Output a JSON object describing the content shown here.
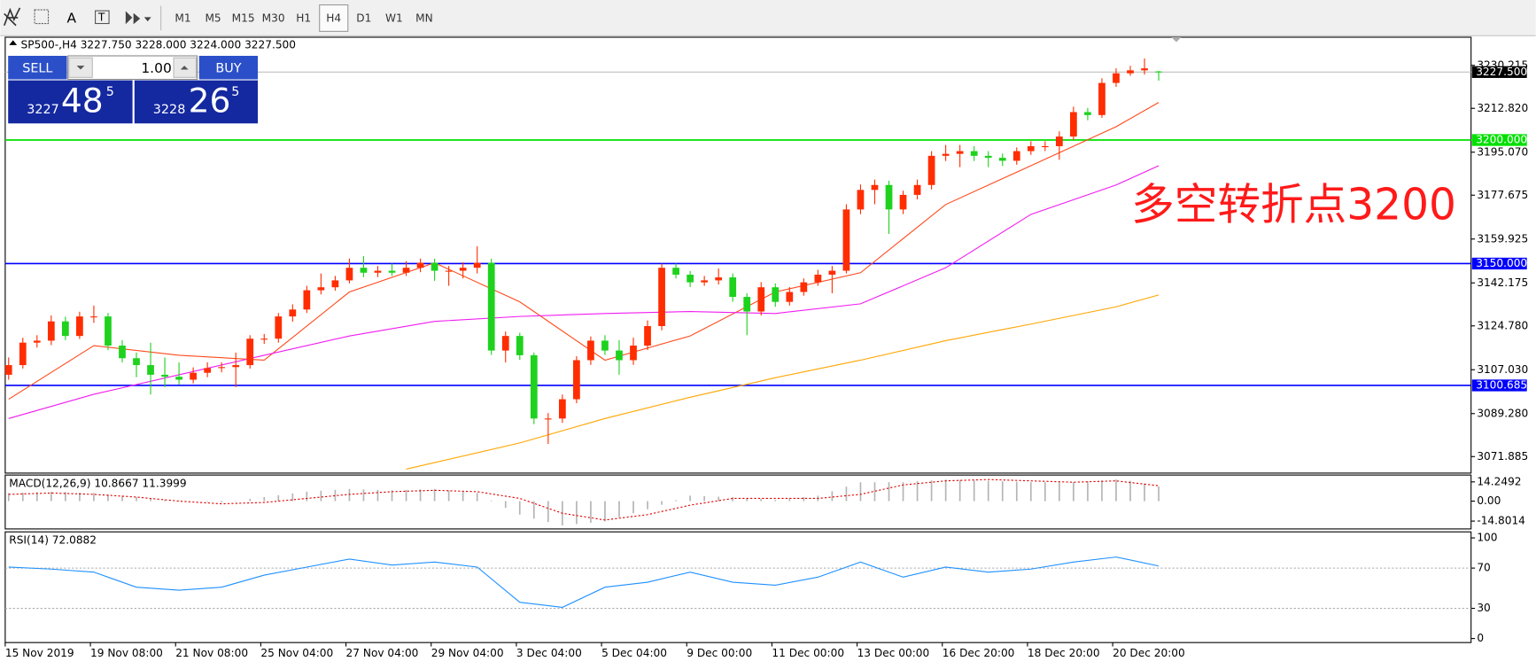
{
  "toolbar": {
    "timeframes": [
      "M1",
      "M5",
      "M15",
      "M30",
      "H1",
      "H4",
      "D1",
      "W1",
      "MN"
    ],
    "active": 5
  },
  "trade_panel": {
    "sell": "SELL",
    "buy": "BUY",
    "lot": "1.00",
    "bid": {
      "head": "3227",
      "main": "48",
      "tail": "5"
    },
    "ask": {
      "head": "3228",
      "main": "26",
      "tail": "5"
    }
  },
  "chart_data": {
    "type": "candlestick",
    "header": "SP500-,H4  3227.750 3228.000 3224.000 3227.500",
    "categories": [
      "15 Nov 2019",
      null,
      null,
      null,
      null,
      null,
      "19 Nov 08:00",
      null,
      null,
      null,
      null,
      null,
      "21 Nov 08:00",
      null,
      null,
      null,
      null,
      null,
      "25 Nov 04:00",
      null,
      null,
      null,
      null,
      null,
      "27 Nov 04:00",
      null,
      null,
      null,
      null,
      null,
      "29 Nov 04:00",
      null,
      null,
      null,
      null,
      null,
      "3 Dec 04:00",
      null,
      null,
      null,
      null,
      null,
      "5 Dec 04:00",
      null,
      null,
      null,
      null,
      null,
      "9 Dec 00:00",
      null,
      null,
      null,
      null,
      null,
      "11 Dec 00:00",
      null,
      null,
      null,
      null,
      null,
      "13 Dec 00:00",
      null,
      null,
      null,
      null,
      null,
      "16 Dec 20:00",
      null,
      null,
      null,
      null,
      null,
      "18 Dec 20:00",
      null,
      null,
      null,
      null,
      null,
      "20 Dec 20:00",
      null,
      null,
      null
    ],
    "open": [
      3105.0,
      3108.9,
      3118.0,
      3118.8,
      3126.6,
      3120.7,
      3128.6,
      3128.6,
      3116.8,
      3111.7,
      3108.9,
      3105.0,
      3104.2,
      3103.0,
      3105.8,
      3107.7,
      3108.1,
      3108.9,
      3119.6,
      3119.6,
      3128.6,
      3131.4,
      3139.2,
      3140.4,
      3143.2,
      3148.3,
      3146.3,
      3147.1,
      3146.3,
      3148.3,
      3150.3,
      3147.1,
      3147.1,
      3148.3,
      3150.3,
      3114.8,
      3120.7,
      3112.9,
      3087.3,
      3087.3,
      3095.1,
      3110.9,
      3118.8,
      3114.8,
      3110.9,
      3116.8,
      3124.7,
      3148.3,
      3145.5,
      3142.4,
      3143.2,
      3144.4,
      3136.5,
      3130.6,
      3140.4,
      3134.5,
      3138.5,
      3142.4,
      3145.5,
      3147.1,
      3171.9,
      3179.8,
      3181.8,
      3171.9,
      3177.8,
      3181.8,
      3193.6,
      3194.4,
      3195.5,
      3193.6,
      3192.8,
      3191.6,
      3195.5,
      3197.5,
      3197.5,
      3201.4,
      3211.3,
      3210.1,
      3223.1,
      3227.0,
      3228.2,
      3227.75
    ],
    "high": [
      3112.0,
      3120.0,
      3121.0,
      3129.0,
      3128.5,
      3130.5,
      3133.0,
      3130.0,
      3119.0,
      3114.0,
      3118.0,
      3112.0,
      3110.0,
      3108.0,
      3110.0,
      3110.0,
      3114.0,
      3121.0,
      3121.5,
      3130.0,
      3133.5,
      3141.0,
      3146.0,
      3145.0,
      3152.0,
      3153.0,
      3149.0,
      3150.0,
      3151.0,
      3152.0,
      3152.0,
      3149.0,
      3150.5,
      3157.0,
      3152.0,
      3122.5,
      3122.0,
      3114.0,
      3089.5,
      3097.0,
      3112.5,
      3120.5,
      3121.0,
      3119.0,
      3120.0,
      3127.0,
      3150.0,
      3150.0,
      3147.0,
      3145.0,
      3148.0,
      3146.0,
      3138.0,
      3142.5,
      3142.0,
      3140.5,
      3144.0,
      3147.5,
      3149.0,
      3174.0,
      3182.0,
      3184.0,
      3183.5,
      3179.5,
      3184.0,
      3195.5,
      3198.0,
      3198.0,
      3197.5,
      3195.5,
      3194.5,
      3197.0,
      3199.5,
      3199.5,
      3203.5,
      3213.5,
      3213.0,
      3225.0,
      3229.0,
      3230.0,
      3233.0,
      3228.0
    ],
    "low": [
      3103.0,
      3107.5,
      3116.0,
      3117.0,
      3119.0,
      3119.5,
      3126.0,
      3115.0,
      3110.0,
      3104.0,
      3097.0,
      3100.0,
      3101.0,
      3101.5,
      3104.0,
      3106.0,
      3100.0,
      3107.5,
      3117.5,
      3118.0,
      3126.5,
      3130.0,
      3137.5,
      3139.0,
      3142.0,
      3144.5,
      3144.5,
      3145.0,
      3145.0,
      3146.5,
      3143.0,
      3141.0,
      3144.0,
      3146.0,
      3113.0,
      3110.0,
      3111.0,
      3085.0,
      3077.0,
      3085.5,
      3093.5,
      3109.0,
      3113.0,
      3105.0,
      3109.0,
      3115.0,
      3123.0,
      3144.0,
      3140.5,
      3141.0,
      3141.5,
      3134.5,
      3121.0,
      3129.0,
      3132.5,
      3133.0,
      3137.0,
      3141.0,
      3138.0,
      3146.0,
      3170.0,
      3174.0,
      3162.0,
      3170.0,
      3176.0,
      3180.0,
      3191.5,
      3189.0,
      3191.5,
      3189.0,
      3189.5,
      3190.0,
      3194.0,
      3195.5,
      3192.0,
      3200.0,
      3208.0,
      3209.0,
      3221.5,
      3226.0,
      3226.5,
      3224.0
    ],
    "close": [
      3108.9,
      3118.0,
      3118.8,
      3126.6,
      3120.7,
      3128.6,
      3128.6,
      3116.8,
      3111.7,
      3108.9,
      3105.0,
      3104.2,
      3103.0,
      3105.8,
      3107.7,
      3108.1,
      3108.9,
      3119.6,
      3119.6,
      3128.6,
      3131.4,
      3139.2,
      3140.4,
      3143.2,
      3148.3,
      3146.3,
      3147.1,
      3146.3,
      3148.3,
      3150.3,
      3147.1,
      3147.1,
      3148.3,
      3150.3,
      3114.8,
      3120.7,
      3112.9,
      3087.3,
      3087.3,
      3095.1,
      3110.9,
      3118.8,
      3114.8,
      3110.9,
      3116.8,
      3124.7,
      3148.3,
      3145.5,
      3142.4,
      3143.2,
      3144.4,
      3136.5,
      3130.6,
      3140.4,
      3134.5,
      3138.5,
      3142.4,
      3145.5,
      3147.1,
      3171.9,
      3179.8,
      3181.8,
      3171.9,
      3177.8,
      3181.8,
      3193.6,
      3194.4,
      3195.5,
      3193.6,
      3192.8,
      3191.6,
      3195.5,
      3197.5,
      3197.5,
      3201.4,
      3211.3,
      3210.1,
      3223.1,
      3227.0,
      3228.2,
      3229.0,
      3227.5
    ],
    "up_color": "#ff2d00",
    "down_color": "#1ed21e",
    "ylim": [
      3065.2,
      3241.6
    ],
    "yticks": [
      3230.215,
      {
        "value": 3212.82,
        "label": "3212.820"
      },
      {
        "value": 3195.07,
        "label": "3195.070"
      },
      3177.675,
      3159.925,
      3142.175,
      {
        "value": 3124.78,
        "label": "3124.780"
      },
      {
        "value": 3107.03,
        "label": "3107.030"
      },
      {
        "value": 3089.28,
        "label": "3089.280"
      },
      3071.885
    ],
    "moving_averages": [
      {
        "color": "#ff4a1c",
        "x": [
          0,
          6,
          12,
          18,
          24,
          30,
          36,
          42,
          48,
          54,
          60,
          66,
          72,
          78,
          81
        ],
        "values": [
          3095.1,
          3116.8,
          3112.9,
          3110.9,
          3138.5,
          3150.3,
          3134.5,
          3110.9,
          3120.7,
          3138.5,
          3146.3,
          3173.9,
          3189.6,
          3205.4,
          3215.2
        ]
      },
      {
        "color": "#f01cf0",
        "x": [
          0,
          6,
          12,
          18,
          24,
          30,
          36,
          42,
          48,
          54,
          60,
          66,
          72,
          78,
          81
        ],
        "values": [
          3087.3,
          3097.1,
          3105.0,
          3112.9,
          3120.7,
          3126.6,
          3128.6,
          3129.8,
          3130.6,
          3129.8,
          3133.7,
          3148.3,
          3169.9,
          3181.8,
          3189.6
        ]
      },
      {
        "color": "#ffa500",
        "x": [
          28,
          36,
          42,
          48,
          54,
          60,
          66,
          72,
          78,
          81
        ],
        "values": [
          3066.8,
          3077.4,
          3087.3,
          3095.9,
          3103.8,
          3110.9,
          3118.8,
          3125.5,
          3132.5,
          3137.3
        ]
      }
    ],
    "levels": [
      {
        "value": 3200,
        "label": "3200.000",
        "color": "#00e000"
      },
      {
        "value": 3150,
        "label": "3150.000",
        "color": "#0000ff"
      },
      {
        "value": 3100.685,
        "label": "3100.685",
        "color": "#0000ff"
      }
    ],
    "last_price": {
      "value": 3227.5,
      "label": "3227.500"
    },
    "annotation": "多空转折点3200",
    "annotation_color": "#ff1a1a",
    "macd": {
      "label": "MACD(12,26,9) 10.8667 11.3999",
      "ylim": [
        -20.6,
        19.3
      ],
      "yticks": [
        14.2492,
        {
          "value": 0,
          "label": "0.00"
        },
        -14.8014
      ],
      "histogram_color": "#b4b4b4",
      "histogram": [
        6,
        6.3,
        6.7,
        7,
        6.7,
        6.3,
        6,
        5,
        4,
        3,
        2,
        1,
        0.5,
        0,
        -0.5,
        -1,
        0.3,
        1.7,
        3,
        4.3,
        5.7,
        7,
        7.7,
        8.3,
        9,
        8.7,
        8.3,
        8,
        8.3,
        8.7,
        9,
        8,
        7,
        6,
        0.5,
        -5,
        -10,
        -13,
        -15.5,
        -18,
        -17,
        -16,
        -15,
        -12,
        -9,
        -6,
        -2.7,
        0.7,
        4,
        3.7,
        3.3,
        3,
        2.3,
        1.7,
        1,
        2,
        3,
        4,
        7.3,
        10.7,
        14,
        14,
        14,
        14,
        14.7,
        15.3,
        16,
        15.7,
        15.3,
        15,
        14.7,
        14.3,
        14,
        14,
        14,
        14,
        14.7,
        15.3,
        16,
        15,
        13,
        10.9
      ],
      "signal_color": "#e00000",
      "signal": {
        "x": [
          0,
          3,
          6,
          9,
          12,
          15,
          18,
          21,
          24,
          27,
          30,
          33,
          36,
          39,
          42,
          45,
          48,
          51,
          54,
          57,
          60,
          63,
          66,
          69,
          72,
          75,
          78,
          81
        ],
        "values": [
          5,
          6,
          5,
          3,
          0,
          -2,
          -1,
          2,
          5,
          7,
          8,
          7,
          2,
          -9,
          -14,
          -10,
          -3,
          2,
          2,
          2,
          5,
          12,
          15,
          16,
          15,
          14,
          15,
          11.4
        ]
      }
    },
    "rsi": {
      "label": "RSI(14) 72.0882",
      "ylim": [
        -4,
        106
      ],
      "yticks": [
        100,
        70,
        30,
        0
      ],
      "levels": [
        70,
        30
      ],
      "color": "#1e90ff",
      "x": [
        0,
        3,
        6,
        9,
        12,
        15,
        18,
        21,
        24,
        27,
        30,
        33,
        36,
        39,
        42,
        45,
        48,
        51,
        54,
        57,
        60,
        63,
        66,
        69,
        72,
        75,
        78,
        81
      ],
      "values": [
        71,
        69,
        66,
        51,
        48,
        51,
        63,
        71,
        79,
        73,
        76,
        71,
        36,
        31,
        51,
        56,
        66,
        56,
        53,
        61,
        76,
        61,
        71,
        66,
        69,
        76,
        81,
        72.1
      ]
    }
  }
}
